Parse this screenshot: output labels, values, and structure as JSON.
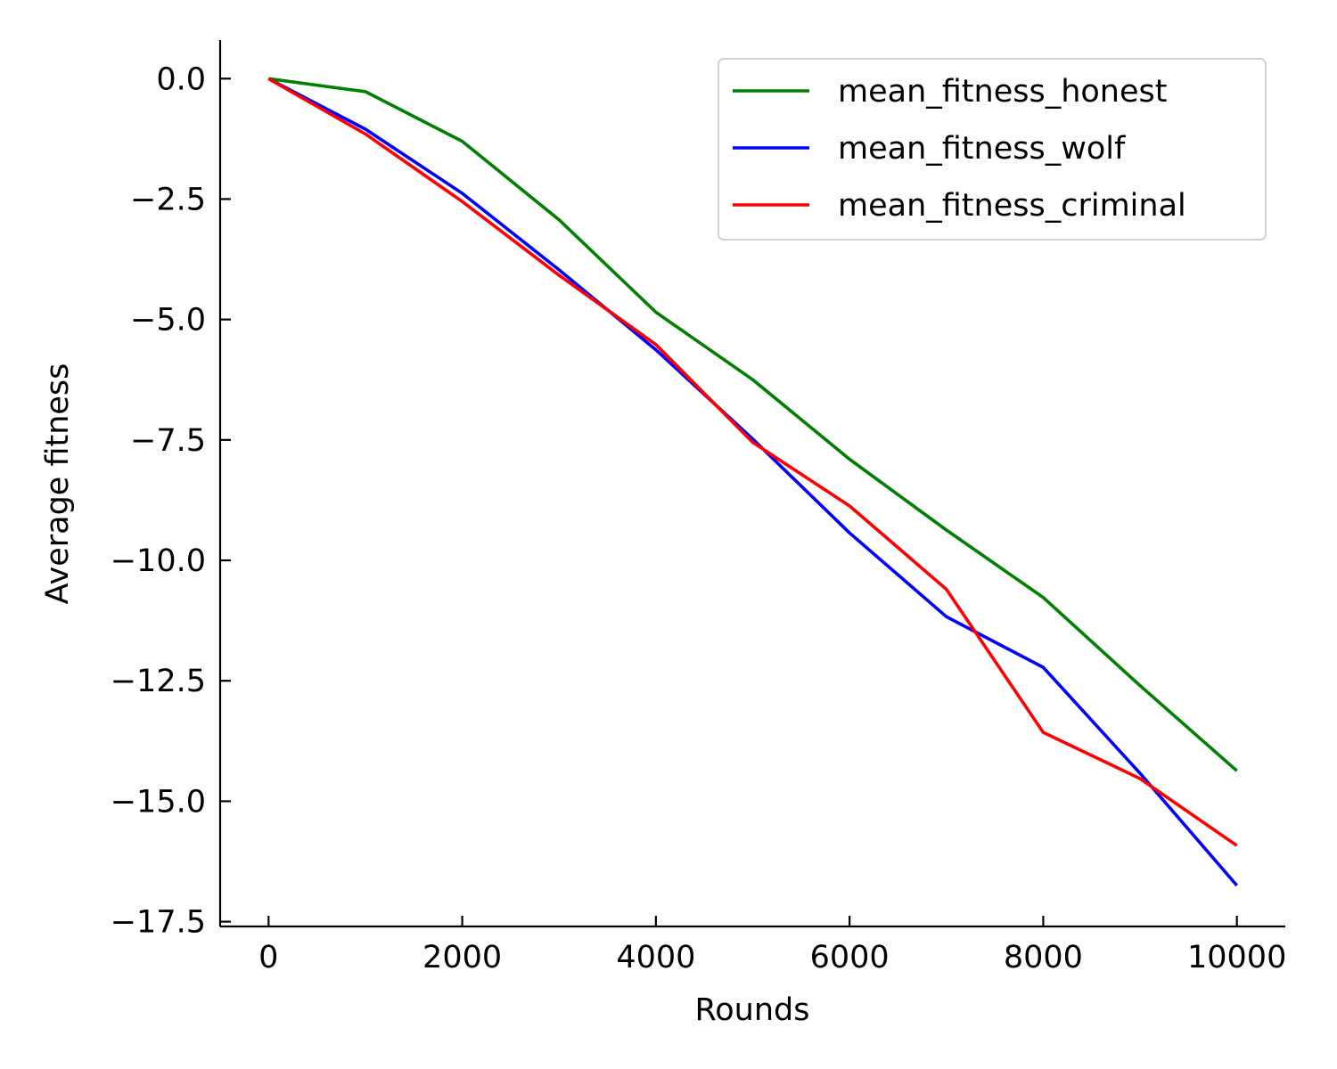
{
  "chart_data": {
    "type": "line",
    "title": "",
    "xlabel": "Rounds",
    "ylabel": "Average fitness",
    "xlim": [
      -500,
      10500
    ],
    "ylim": [
      -17.6,
      0.8
    ],
    "xticks": [
      0,
      2000,
      4000,
      6000,
      8000,
      10000
    ],
    "xtick_labels": [
      "0",
      "2000",
      "4000",
      "6000",
      "8000",
      "10000"
    ],
    "yticks": [
      0.0,
      -2.5,
      -5.0,
      -7.5,
      -10.0,
      -12.5,
      -15.0,
      -17.5
    ],
    "ytick_labels": [
      "0.0",
      "−2.5",
      "−5.0",
      "−7.5",
      "−10.0",
      "−12.5",
      "−15.0",
      "−17.5"
    ],
    "grid": false,
    "legend_position": "top-right",
    "x": [
      0,
      1000,
      2000,
      3000,
      4000,
      5000,
      6000,
      7000,
      8000,
      9000,
      10000
    ],
    "series": [
      {
        "name": "mean_fitness_honest",
        "color": "#008000",
        "values": [
          0.0,
          -0.27,
          -1.3,
          -2.93,
          -4.85,
          -6.25,
          -7.9,
          -9.37,
          -10.77,
          -12.6,
          -14.37
        ]
      },
      {
        "name": "mean_fitness_wolf",
        "color": "#0000ff",
        "values": [
          0.0,
          -1.05,
          -2.38,
          -3.97,
          -5.63,
          -7.48,
          -9.43,
          -11.17,
          -12.22,
          -14.42,
          -16.75
        ]
      },
      {
        "name": "mean_fitness_criminal",
        "color": "#ff0000",
        "values": [
          0.0,
          -1.15,
          -2.55,
          -4.08,
          -5.52,
          -7.55,
          -8.87,
          -10.6,
          -13.57,
          -14.53,
          -15.92
        ]
      }
    ]
  }
}
